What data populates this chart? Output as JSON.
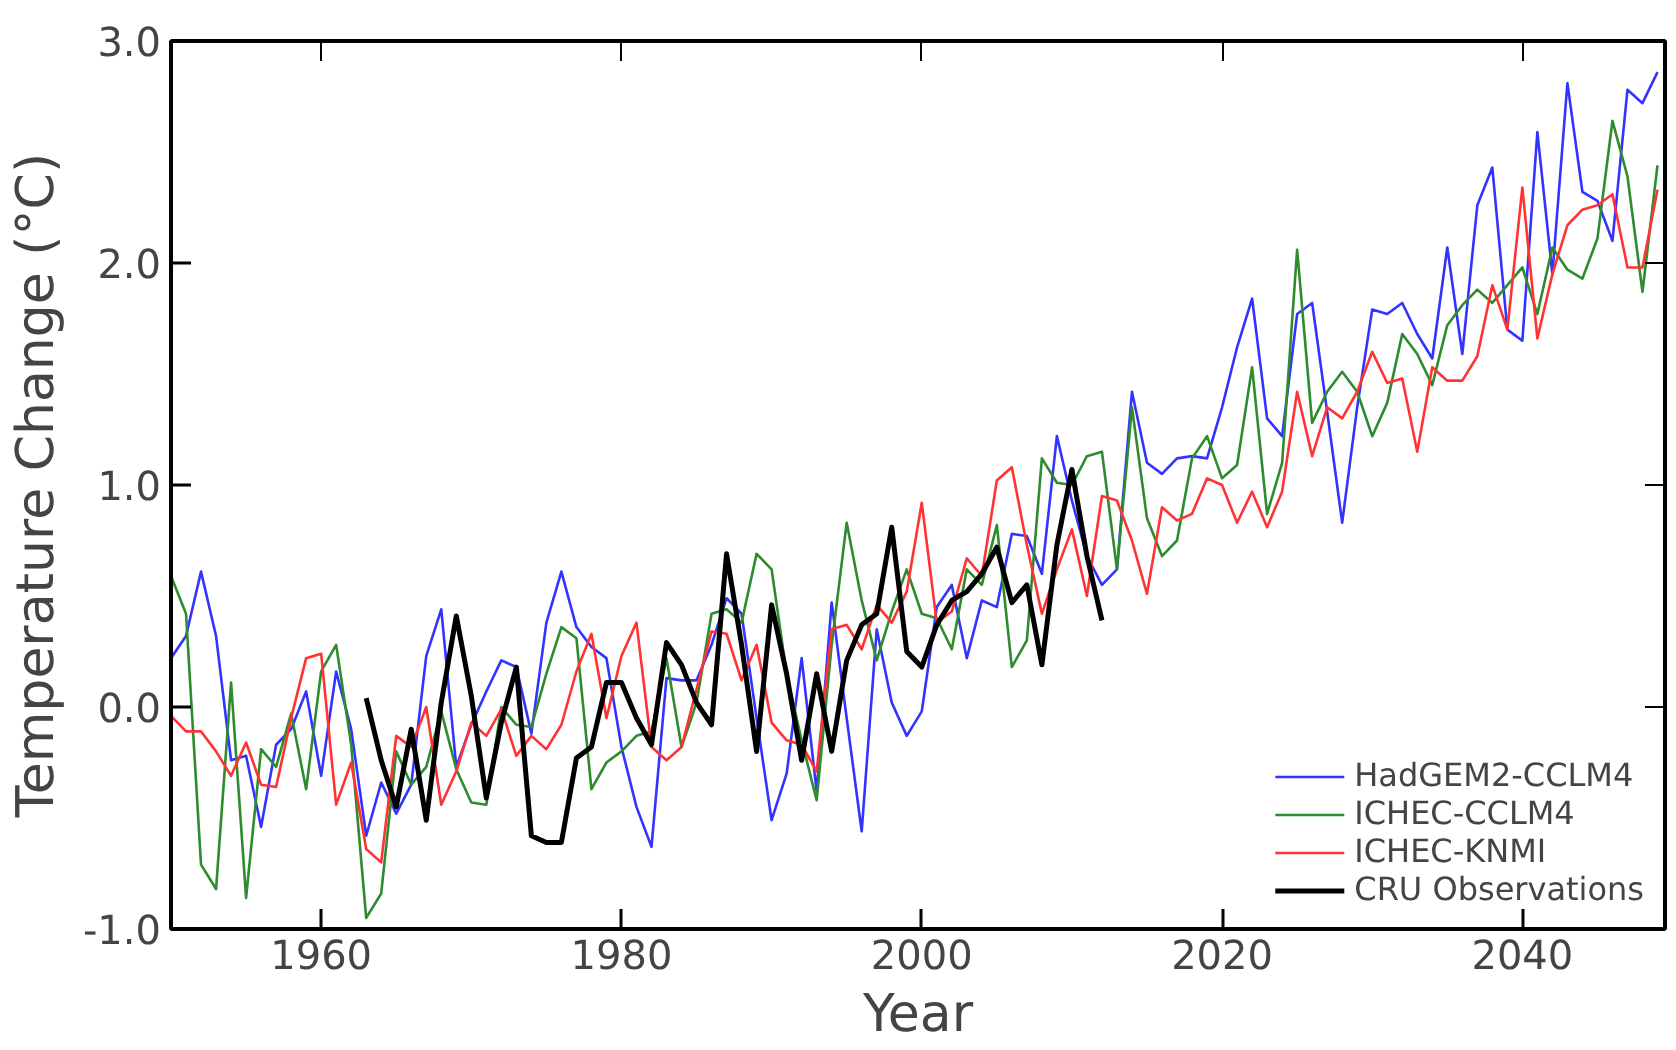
{
  "chart_data": {
    "type": "line",
    "xlabel": "Year",
    "ylabel": "Temperature Change (°C)",
    "x": [
      1950,
      1951,
      1952,
      1953,
      1954,
      1955,
      1956,
      1957,
      1958,
      1959,
      1960,
      1961,
      1962,
      1963,
      1964,
      1965,
      1966,
      1967,
      1968,
      1969,
      1970,
      1971,
      1972,
      1973,
      1974,
      1975,
      1976,
      1977,
      1978,
      1979,
      1980,
      1981,
      1982,
      1983,
      1984,
      1985,
      1986,
      1987,
      1988,
      1989,
      1990,
      1991,
      1992,
      1993,
      1994,
      1995,
      1996,
      1997,
      1998,
      1999,
      2000,
      2001,
      2002,
      2003,
      2004,
      2005,
      2006,
      2007,
      2008,
      2009,
      2010,
      2011,
      2012,
      2013,
      2014,
      2015,
      2016,
      2017,
      2018,
      2019,
      2020,
      2021,
      2022,
      2023,
      2024,
      2025,
      2026,
      2027,
      2028,
      2029,
      2030,
      2031,
      2032,
      2033,
      2034,
      2035,
      2036,
      2037,
      2038,
      2039,
      2040,
      2041,
      2042,
      2043,
      2044,
      2045,
      2046,
      2047,
      2048,
      2049
    ],
    "series": [
      {
        "name": "HadGEM2-CCLM4",
        "color": "#3333ff",
        "values": [
          0.22,
          0.32,
          0.61,
          0.32,
          -0.24,
          -0.22,
          -0.54,
          -0.17,
          -0.1,
          0.07,
          -0.31,
          0.16,
          -0.1,
          -0.58,
          -0.34,
          -0.48,
          -0.35,
          0.23,
          0.44,
          -0.27,
          -0.08,
          0.07,
          0.21,
          0.18,
          -0.12,
          0.38,
          0.61,
          0.36,
          0.27,
          0.22,
          -0.18,
          -0.45,
          -0.63,
          0.13,
          0.12,
          0.12,
          0.28,
          0.49,
          0.42,
          -0.05,
          -0.51,
          -0.3,
          0.22,
          -0.38,
          0.47,
          -0.05,
          -0.56,
          0.35,
          0.02,
          -0.13,
          -0.02,
          0.45,
          0.55,
          0.22,
          0.48,
          0.45,
          0.78,
          0.77,
          0.6,
          1.22,
          0.93,
          0.68,
          0.55,
          0.62,
          1.42,
          1.1,
          1.05,
          1.12,
          1.13,
          1.12,
          1.35,
          1.62,
          1.84,
          1.3,
          1.22,
          1.77,
          1.82,
          1.33,
          0.83,
          1.35,
          1.79,
          1.77,
          1.82,
          1.68,
          1.57,
          2.07,
          1.59,
          2.26,
          2.43,
          1.7,
          1.65,
          2.59,
          1.95,
          2.81,
          2.32,
          2.28,
          2.1,
          2.78,
          2.72,
          2.86
        ]
      },
      {
        "name": "ICHEC-CCLM4",
        "color": "#2e8b2e",
        "values": [
          0.59,
          0.42,
          -0.71,
          -0.82,
          0.11,
          -0.86,
          -0.19,
          -0.27,
          -0.03,
          -0.37,
          0.16,
          0.28,
          -0.17,
          -0.95,
          -0.84,
          -0.2,
          -0.35,
          -0.27,
          -0.02,
          -0.28,
          -0.43,
          -0.44,
          0.0,
          -0.08,
          -0.09,
          0.15,
          0.36,
          0.31,
          -0.37,
          -0.25,
          -0.2,
          -0.13,
          -0.11,
          0.22,
          -0.18,
          0.02,
          0.42,
          0.44,
          0.38,
          0.69,
          0.62,
          0.15,
          -0.15,
          -0.42,
          0.28,
          0.83,
          0.48,
          0.21,
          0.43,
          0.62,
          0.42,
          0.4,
          0.26,
          0.62,
          0.55,
          0.82,
          0.18,
          0.3,
          1.12,
          1.01,
          1.0,
          1.13,
          1.15,
          0.62,
          1.35,
          0.85,
          0.68,
          0.75,
          1.12,
          1.22,
          1.03,
          1.09,
          1.53,
          0.87,
          1.1,
          2.06,
          1.28,
          1.42,
          1.51,
          1.42,
          1.22,
          1.37,
          1.68,
          1.59,
          1.45,
          1.72,
          1.81,
          1.88,
          1.82,
          1.9,
          1.98,
          1.77,
          2.07,
          1.97,
          1.93,
          2.11,
          2.64,
          2.39,
          1.87,
          2.44
        ]
      },
      {
        "name": "ICHEC-KNMI",
        "color": "#ff3333",
        "values": [
          -0.04,
          -0.11,
          -0.11,
          -0.2,
          -0.31,
          -0.16,
          -0.35,
          -0.36,
          -0.05,
          0.22,
          0.24,
          -0.44,
          -0.25,
          -0.64,
          -0.7,
          -0.13,
          -0.18,
          0.0,
          -0.44,
          -0.29,
          -0.07,
          -0.13,
          -0.01,
          -0.22,
          -0.13,
          -0.19,
          -0.08,
          0.16,
          0.33,
          -0.05,
          0.23,
          0.38,
          -0.18,
          -0.24,
          -0.18,
          0.08,
          0.34,
          0.33,
          0.12,
          0.28,
          -0.07,
          -0.15,
          -0.17,
          -0.29,
          0.35,
          0.37,
          0.26,
          0.46,
          0.38,
          0.52,
          0.92,
          0.38,
          0.43,
          0.67,
          0.59,
          1.02,
          1.08,
          0.73,
          0.42,
          0.62,
          0.8,
          0.5,
          0.95,
          0.93,
          0.75,
          0.51,
          0.9,
          0.84,
          0.87,
          1.03,
          1.0,
          0.83,
          0.97,
          0.81,
          0.97,
          1.42,
          1.13,
          1.35,
          1.3,
          1.42,
          1.6,
          1.46,
          1.48,
          1.15,
          1.53,
          1.47,
          1.47,
          1.58,
          1.9,
          1.7,
          2.34,
          1.66,
          1.95,
          2.17,
          2.24,
          2.26,
          2.31,
          1.98,
          1.98,
          2.33
        ]
      },
      {
        "name": "CRU Observations",
        "color": "#000000",
        "x": [
          1963,
          1964,
          1965,
          1966,
          1967,
          1968,
          1969,
          1970,
          1971,
          1972,
          1973,
          1974,
          1975,
          1976,
          1977,
          1978,
          1979,
          1980,
          1981,
          1982,
          1983,
          1984,
          1985,
          1986,
          1987,
          1988,
          1989,
          1990,
          1991,
          1992,
          1993,
          1994,
          1995,
          1996,
          1997,
          1998,
          1999,
          2000,
          2001,
          2002,
          2003,
          2004,
          2005,
          2006,
          2007,
          2008,
          2009,
          2010,
          2011,
          2012
        ],
        "values": [
          0.04,
          -0.24,
          -0.45,
          -0.1,
          -0.51,
          0.02,
          0.41,
          0.05,
          -0.41,
          -0.07,
          0.18,
          -0.58,
          -0.61,
          -0.61,
          -0.23,
          -0.18,
          0.11,
          0.11,
          -0.05,
          -0.17,
          0.29,
          0.19,
          0.02,
          -0.08,
          0.69,
          0.28,
          -0.2,
          0.46,
          0.15,
          -0.24,
          0.15,
          -0.2,
          0.21,
          0.37,
          0.42,
          0.81,
          0.25,
          0.18,
          0.37,
          0.48,
          0.52,
          0.6,
          0.72,
          0.47,
          0.55,
          0.19,
          0.73,
          1.07,
          0.68,
          0.39
        ]
      }
    ],
    "xlim": [
      1950,
      2049.5
    ],
    "xticks": [
      1960,
      1980,
      2000,
      2020,
      2040
    ],
    "ylim": [
      -1.0,
      3.0
    ],
    "yticks": [
      {
        "value": -1,
        "label": "-1.0"
      },
      {
        "value": 0,
        "label": "0.0"
      },
      {
        "value": 1,
        "label": "1.0"
      },
      {
        "value": 2,
        "label": "2.0"
      },
      {
        "value": 3,
        "label": "3.0"
      }
    ],
    "grid": false,
    "legend": "bottom right",
    "marker": "none",
    "line_style": "solid"
  }
}
